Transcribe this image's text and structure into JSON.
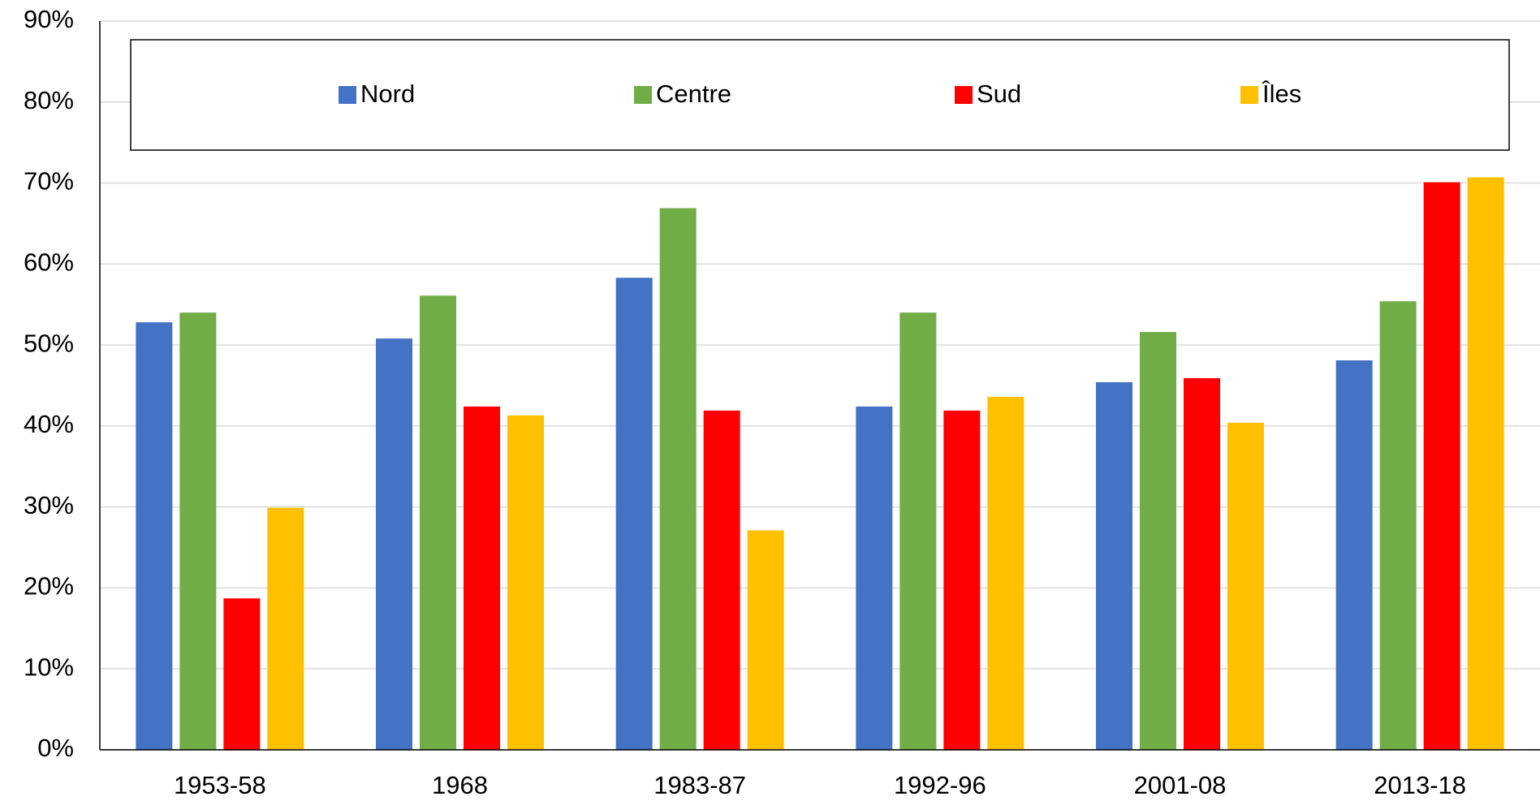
{
  "chart_data": {
    "type": "bar",
    "categories": [
      "1953-58",
      "1968",
      "1983-87",
      "1992-96",
      "2001-08",
      "2013-18"
    ],
    "series": [
      {
        "name": "Nord",
        "color": "#4472c4",
        "values": [
          52.8,
          50.8,
          58.3,
          42.4,
          45.4,
          48.1
        ]
      },
      {
        "name": "Centre",
        "color": "#70ad47",
        "values": [
          54.0,
          56.1,
          66.9,
          54.0,
          51.6,
          55.4
        ]
      },
      {
        "name": "Sud",
        "color": "#ff0000",
        "values": [
          18.7,
          42.4,
          41.9,
          41.9,
          45.9,
          70.1
        ]
      },
      {
        "name": "Îles",
        "color": "#ffc000",
        "values": [
          29.9,
          41.3,
          27.1,
          43.6,
          40.4,
          70.7
        ]
      }
    ],
    "ylim": [
      0,
      90
    ],
    "yticks": [
      {
        "value": 0,
        "label": "0%"
      },
      {
        "value": 10,
        "label": "10%"
      },
      {
        "value": 20,
        "label": "20%"
      },
      {
        "value": 30,
        "label": "30%"
      },
      {
        "value": 40,
        "label": "40%"
      },
      {
        "value": 50,
        "label": "50%"
      },
      {
        "value": 60,
        "label": "60%"
      },
      {
        "value": 70,
        "label": "70%"
      },
      {
        "value": 80,
        "label": "80%"
      },
      {
        "value": 90,
        "label": "90%"
      }
    ],
    "grid": true,
    "legend": "top"
  }
}
